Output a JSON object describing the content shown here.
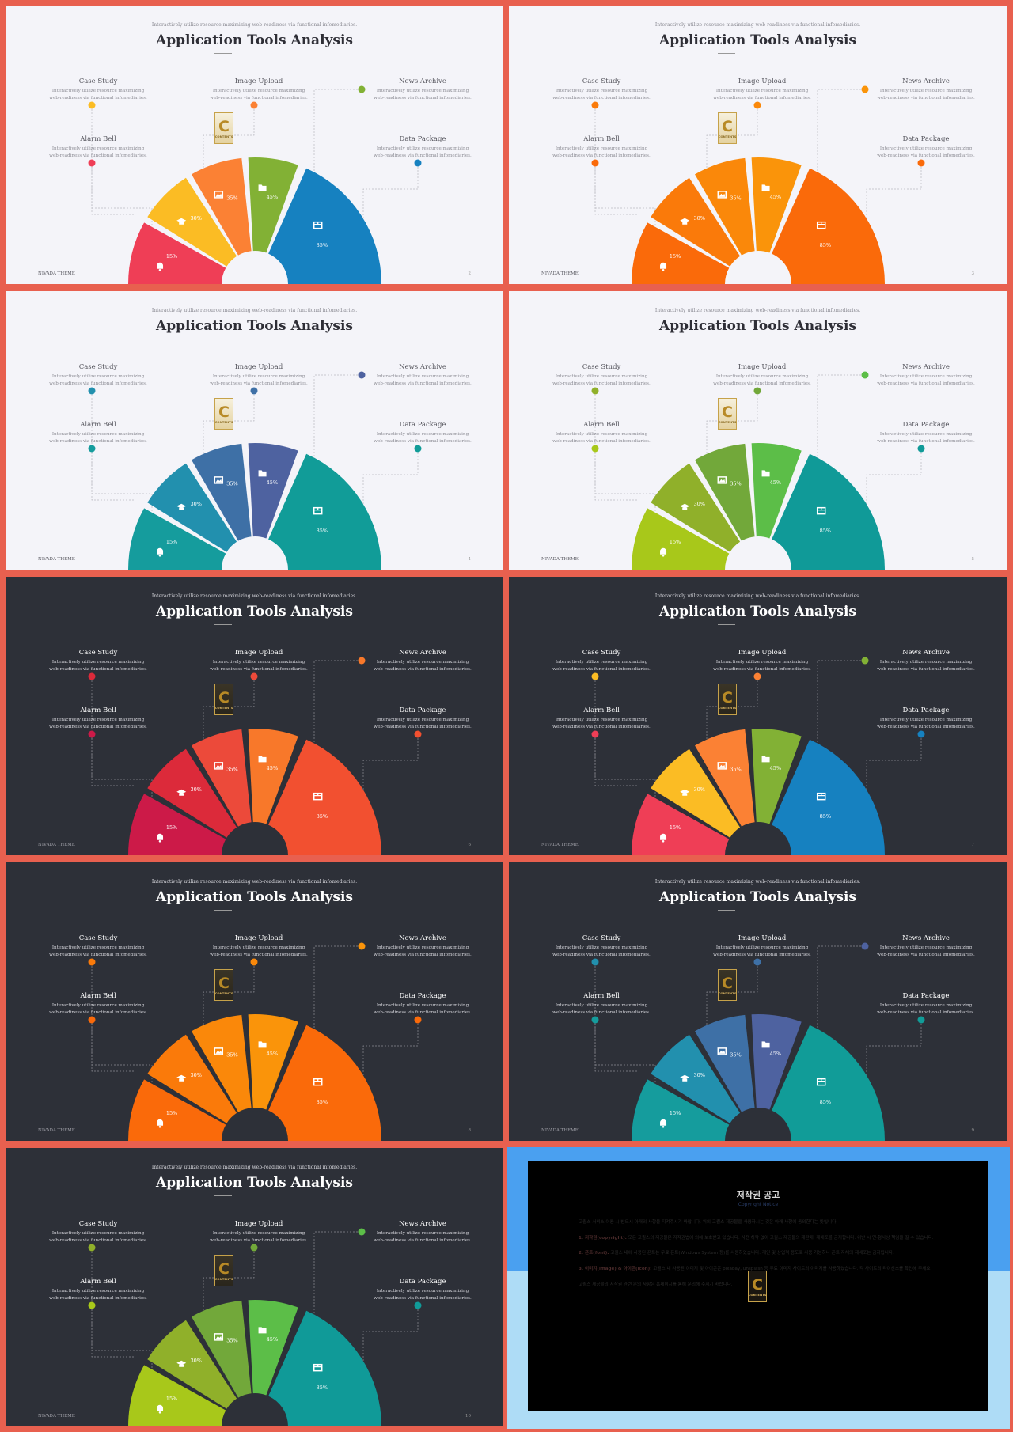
{
  "slide_text": {
    "subtitle": "Interactively utilize resource maximizing web-readiness via functional infomediaries.",
    "title": "Application Tools Analysis",
    "footer": "NIVADA THEME",
    "logo_letter": "C",
    "logo_word": "CONTENTS",
    "labels": {
      "case_study": {
        "title": "Case Study",
        "desc": "Interactively utilize resource maximizing web-readiness via functional infomediaries."
      },
      "image_upload": {
        "title": "Image Upload",
        "desc": "Interactively utilize resource maximizing web-readiness via functional infomediaries."
      },
      "news_archive": {
        "title": "News Archive",
        "desc": "Interactively utilize resource maximizing web-readiness via functional infomediaries."
      },
      "alarm_bell": {
        "title": "Alarm Bell",
        "desc": "Interactively utilize resource maximizing web-readiness via functional infomediaries."
      },
      "data_package": {
        "title": "Data Package",
        "desc": "Interactively utilize resource maximizing web-readiness via functional infomediaries."
      }
    }
  },
  "segments": [
    {
      "key": "alarm",
      "value": 15,
      "label": "15%",
      "icon": "bell-icon"
    },
    {
      "key": "case",
      "value": 30,
      "label": "30%",
      "icon": "graduation-cap-icon"
    },
    {
      "key": "image",
      "value": 35,
      "label": "35%",
      "icon": "image-icon"
    },
    {
      "key": "news",
      "value": 45,
      "label": "45%",
      "icon": "folder-icon"
    },
    {
      "key": "data",
      "value": 85,
      "label": "85%",
      "icon": "package-icon"
    }
  ],
  "slides": [
    {
      "theme": "light",
      "page": "2",
      "colors": [
        "#ef3e56",
        "#fbbc24",
        "#fb8134",
        "#82b135",
        "#1681c0"
      ]
    },
    {
      "theme": "light",
      "page": "3",
      "colors": [
        "#fa6a0a",
        "#fa7a0a",
        "#fa880a",
        "#fa940a",
        "#fa6a0a"
      ]
    },
    {
      "theme": "light",
      "page": "4",
      "colors": [
        "#159c9d",
        "#2290ae",
        "#3e70a6",
        "#4e62a0",
        "#119c98"
      ]
    },
    {
      "theme": "light",
      "page": "5",
      "colors": [
        "#a8c81a",
        "#90b02a",
        "#72a83a",
        "#5cbe48",
        "#109a98"
      ]
    },
    {
      "theme": "dark",
      "page": "6",
      "colors": [
        "#cc1a48",
        "#dc2a3a",
        "#ec4a3a",
        "#f8782a",
        "#f25030"
      ]
    },
    {
      "theme": "dark",
      "page": "7",
      "colors": [
        "#ef3e56",
        "#fbbc24",
        "#fb8134",
        "#82b135",
        "#1681c0"
      ]
    },
    {
      "theme": "dark",
      "page": "8",
      "colors": [
        "#fa6a0a",
        "#fa7a0a",
        "#fa880a",
        "#fa940a",
        "#fa6a0a"
      ]
    },
    {
      "theme": "dark",
      "page": "9",
      "colors": [
        "#159c9d",
        "#2290ae",
        "#3e70a6",
        "#4e62a0",
        "#119c98"
      ]
    },
    {
      "theme": "dark",
      "page": "10",
      "colors": [
        "#a8c81a",
        "#90b02a",
        "#72a83a",
        "#5cbe48",
        "#109a98"
      ]
    }
  ],
  "copyright": {
    "title": "저작권 공고",
    "subtitle": "Copyright Notice",
    "p0": "고퀄스 서비스 이용 시 반드시 아래의 사항을 지켜주시기 바랍니다. 위의 고퀄스 제공물을 사용하시는 것은 아래 사항에 동의한다는 뜻입니다.",
    "p1_head": "1. 저작권(copyright):",
    "p1": "모든 고퀄스의 제공물은 저작권법에 의해 보호받고 있습니다. 사전 허락 없이 고퀄스 제공물의 재판매, 재배포를 금지합니다. 위반 시 민·형사상 책임을 질 수 있습니다.",
    "p2_head": "2. 폰트(font):",
    "p2": "고퀄스 내에 사용된 폰트는 무료 폰트(Windows System 등)를 사용하였습니다. 개인 및 상업적 용도로 사용 가능하나 폰트 자체의 재배포는 금지됩니다.",
    "p3_head": "3. 이미지(image) & 아이콘(icon):",
    "p3": "고퀄스 내 사용된 이미지 및 아이콘은 pixabay, unsplash 등 무료 이미지 사이트의 이미지를 사용하였습니다. 각 사이트의 라이선스를 확인해 주세요.",
    "p4": "고퀄스 제공물의 저작권 관련 문의 사항은 홈페이지를 통해 문의해 주시기 바랍니다.",
    "logo_letter": "C",
    "logo_word": "CONTENTS"
  }
}
